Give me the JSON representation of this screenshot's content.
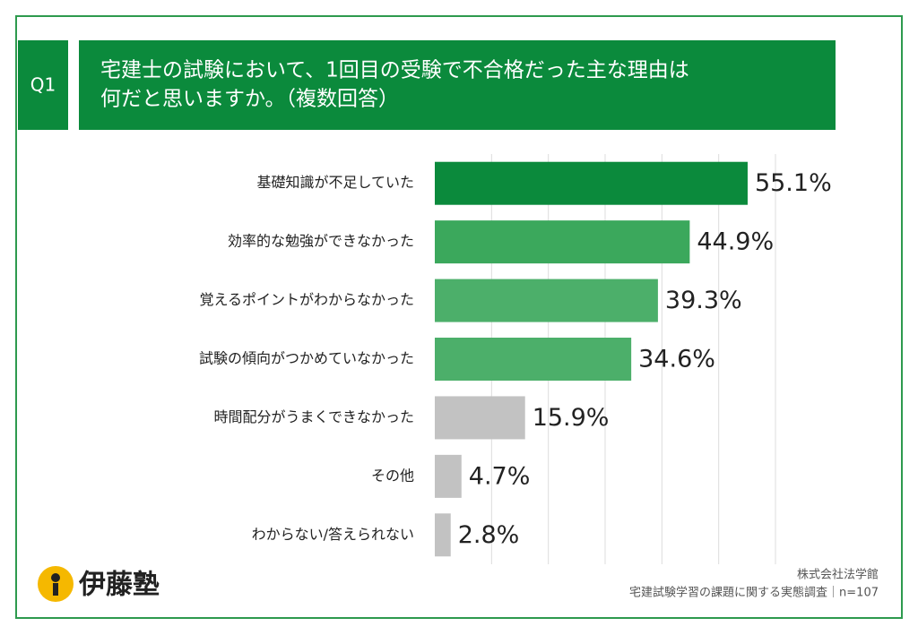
{
  "chart_data": {
    "type": "bar",
    "orientation": "horizontal",
    "question_number": "Q1",
    "title": [
      "宅建士の試験において、1回目の受験で不合格だった主な理由は",
      "何だと思いますか。（複数回答）"
    ],
    "categories": [
      "基礎知識が不足していた",
      "効率的な勉強ができなかった",
      "覚えるポイントがわからなかった",
      "試験の傾向がつかめていなかった",
      "時間配分がうまくできなかった",
      "その他",
      "わからない/答えられない"
    ],
    "values": [
      55.1,
      44.9,
      39.3,
      34.6,
      15.9,
      4.7,
      2.8
    ],
    "value_labels": [
      "55.1%",
      "44.9%",
      "39.3%",
      "34.6%",
      "15.9%",
      "4.7%",
      "2.8%"
    ],
    "colors": [
      "#0b8a3c",
      "#3ba85c",
      "#4caf6a",
      "#4caf6a",
      "#c2c2c2",
      "#c2c2c2",
      "#c2c2c2"
    ],
    "xlim": [
      0,
      60
    ],
    "xticks": [
      10,
      20,
      30,
      40,
      50,
      60
    ],
    "grid": true
  },
  "logo": "伊藤塾",
  "source": [
    "株式会社法学館",
    "宅建試験学習の課題に関する実態調査｜n=107"
  ]
}
